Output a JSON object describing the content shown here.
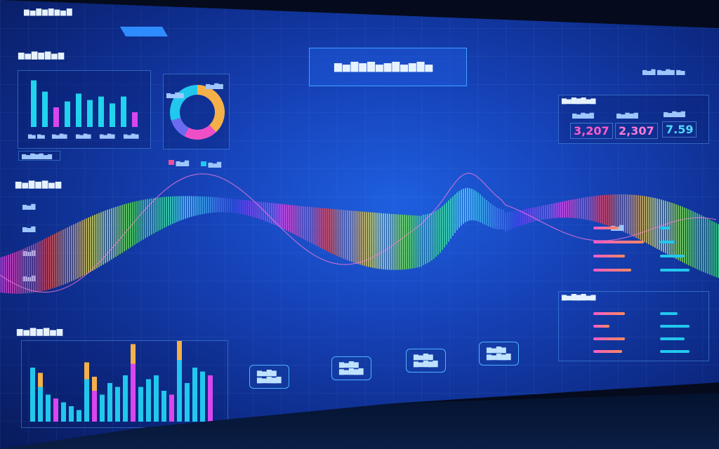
{
  "header": {
    "title": "▆▅▇▆▇▅▆▇▅▆▇▅",
    "subtitle": "▆▅▇▆▇▆▅▇",
    "top_right": "▆▅▇ ▆▅▇▆ ▆▅"
  },
  "top_left_panel": {
    "title": "▆▅▇▆▇▅▆",
    "legend_button": "▆▅▇▆▇▅▆",
    "chart_labels": [
      "▆▅ ▆▅",
      "▆▅▇▆",
      "▆▅▇▆",
      "▆▅▇▆",
      "▆▅▇▆"
    ],
    "values": [
      95,
      72,
      40,
      52,
      68,
      55,
      62,
      48,
      62,
      30
    ],
    "colors": [
      "#22d3ee",
      "#22d3ee",
      "#d946ef",
      "#22d3ee",
      "#22d3ee",
      "#22d3ee",
      "#22d3ee",
      "#22d3ee",
      "#22d3ee",
      "#d946ef"
    ]
  },
  "donut": {
    "label_left": "▆▅▇▆",
    "label_right": "▆▅▇▆",
    "label_bottom": "▆▅▇▆",
    "legend": [
      {
        "label": "▆▅▇",
        "color": "#f0509a"
      },
      {
        "label": "▆▅▇",
        "color": "#22c7ee"
      }
    ],
    "slices": [
      {
        "value": 38,
        "color": "#f5b04a"
      },
      {
        "value": 20,
        "color": "#ef4fc6"
      },
      {
        "value": 12,
        "color": "#6a6cf0"
      },
      {
        "value": 30,
        "color": "#22c7ee"
      }
    ]
  },
  "mid_left_panel": {
    "title": "▆▅▇▆▇▅▆",
    "axis": [
      "▆▅▇",
      "▆▅▇",
      "▆▅▇",
      "▆▅▇"
    ]
  },
  "bottom_left_panel": {
    "title": "▆▅▇▆▇▅▆",
    "values": [
      70,
      45,
      35,
      30,
      25,
      20,
      15,
      55,
      40,
      35,
      50,
      45,
      60,
      75,
      45,
      55,
      60,
      40,
      35,
      80,
      50,
      70,
      65,
      60
    ],
    "accent": [
      0,
      25,
      0,
      0,
      0,
      0,
      0,
      30,
      25,
      0,
      0,
      0,
      0,
      35,
      0,
      0,
      0,
      0,
      0,
      40,
      0,
      0,
      0,
      0
    ]
  },
  "kpis": {
    "title": "▆▅▇▆▇▅▆",
    "items": [
      {
        "label": "▆▅▇▆▇",
        "value": "3,207",
        "color": "#ff5cc8"
      },
      {
        "label": "▆▅▇▆▇",
        "value": "2,307",
        "color": "#ff7ad9"
      },
      {
        "label": "▆▅▇▆▇",
        "value": "7.59",
        "color": "#4fd8ff"
      }
    ]
  },
  "right_bars_1": {
    "rows": [
      {
        "a": 0.4,
        "b": 0.2
      },
      {
        "a": 0.8,
        "b": 0.3
      },
      {
        "a": 0.5,
        "b": 0.5
      },
      {
        "a": 0.6,
        "b": 0.6
      }
    ],
    "label": "▆▅▇"
  },
  "right_bars_2": {
    "title": "▆▅▇▆▇▅▆",
    "rows": [
      {
        "a": 0.5,
        "b": 0.35
      },
      {
        "a": 0.25,
        "b": 0.6
      },
      {
        "a": 0.5,
        "b": 0.5
      },
      {
        "a": 0.45,
        "b": 0.6
      }
    ]
  },
  "buttons": [
    {
      "l1": "▆▅▇▆",
      "l2": "▆▅▇▆▇"
    },
    {
      "l1": "▆▅▇▆",
      "l2": "▆▅▇▆▇"
    },
    {
      "l1": "▆▅▇▆",
      "l2": "▆▅▇▆▇"
    },
    {
      "l1": "▆▅▇▆",
      "l2": "▆▅▇▆▇"
    }
  ]
}
